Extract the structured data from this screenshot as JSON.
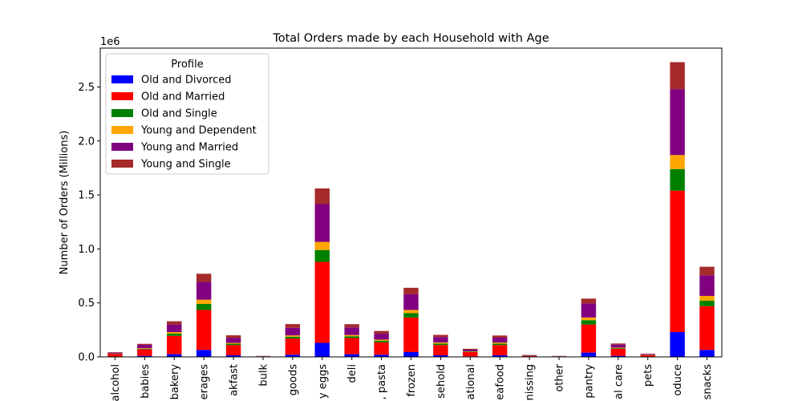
{
  "chart_data": {
    "type": "bar",
    "stacked": true,
    "title": "Total Orders made by each Household with Age",
    "xlabel": "",
    "ylabel": "Number of Orders (Millions)",
    "y_offset_label": "1e6",
    "ylim": [
      0,
      2860000
    ],
    "yticks": [
      "0.0",
      "0.5",
      "1.0",
      "1.5",
      "2.0",
      "2.5"
    ],
    "ytick_values": [
      0,
      500000,
      1000000,
      1500000,
      2000000,
      2500000
    ],
    "legend_title": "Profile",
    "legend_position": "top-left",
    "categories": [
      "alcohol",
      "babies",
      "bakery",
      "beverages",
      "breakfast",
      "bulk",
      "canned goods",
      "dairy eggs",
      "deli",
      "dry goods pasta",
      "frozen",
      "household",
      "international",
      "meat seafood",
      "missing",
      "other",
      "pantry",
      "personal care",
      "pets",
      "produce",
      "snacks"
    ],
    "tick_labels_visible": [
      "alcohol",
      "babies",
      "bakery",
      "erages",
      "akfast",
      "bulk",
      "goods",
      "y eggs",
      "deli",
      ", pasta",
      "frozen",
      "sehold",
      "ational",
      "eafood",
      "nissing",
      "other",
      "pantry",
      "al care",
      "pets",
      "oduce",
      "snacks"
    ],
    "series": [
      {
        "name": "Old and Divorced",
        "color": "#0000ff",
        "values": [
          3000,
          10000,
          25000,
          65000,
          15000,
          1000,
          20000,
          130000,
          25000,
          20000,
          45000,
          15000,
          5000,
          15000,
          1000,
          1000,
          40000,
          10000,
          2000,
          230000,
          65000
        ]
      },
      {
        "name": "Old and Married",
        "color": "#ff0000",
        "values": [
          25000,
          60000,
          170000,
          370000,
          95000,
          4000,
          150000,
          750000,
          150000,
          115000,
          320000,
          95000,
          40000,
          95000,
          8000,
          4000,
          260000,
          65000,
          15000,
          1310000,
          405000
        ]
      },
      {
        "name": "Old and Single",
        "color": "#008000",
        "values": [
          2000,
          6000,
          20000,
          55000,
          12000,
          1000,
          17000,
          110000,
          16000,
          15000,
          40000,
          14000,
          4000,
          13000,
          2000,
          1000,
          40000,
          6000,
          2000,
          200000,
          50000
        ]
      },
      {
        "name": "Young and Dependent",
        "color": "#ffa500",
        "values": [
          1000,
          5000,
          15000,
          40000,
          8000,
          500,
          12000,
          75000,
          12000,
          10000,
          30000,
          10000,
          3000,
          10000,
          500,
          500,
          25000,
          5000,
          2000,
          130000,
          45000
        ]
      },
      {
        "name": "Young and Married",
        "color": "#800080",
        "values": [
          8000,
          30000,
          70000,
          165000,
          45000,
          2000,
          70000,
          350000,
          70000,
          55000,
          145000,
          50000,
          15000,
          45000,
          5000,
          2000,
          130000,
          28000,
          5000,
          610000,
          190000
        ]
      },
      {
        "name": "Young and Single",
        "color": "#a52a2a",
        "values": [
          5000,
          10000,
          30000,
          75000,
          25000,
          500,
          35000,
          145000,
          30000,
          25000,
          60000,
          20000,
          8000,
          20000,
          2000,
          500,
          45000,
          10000,
          3000,
          250000,
          80000
        ]
      }
    ]
  }
}
